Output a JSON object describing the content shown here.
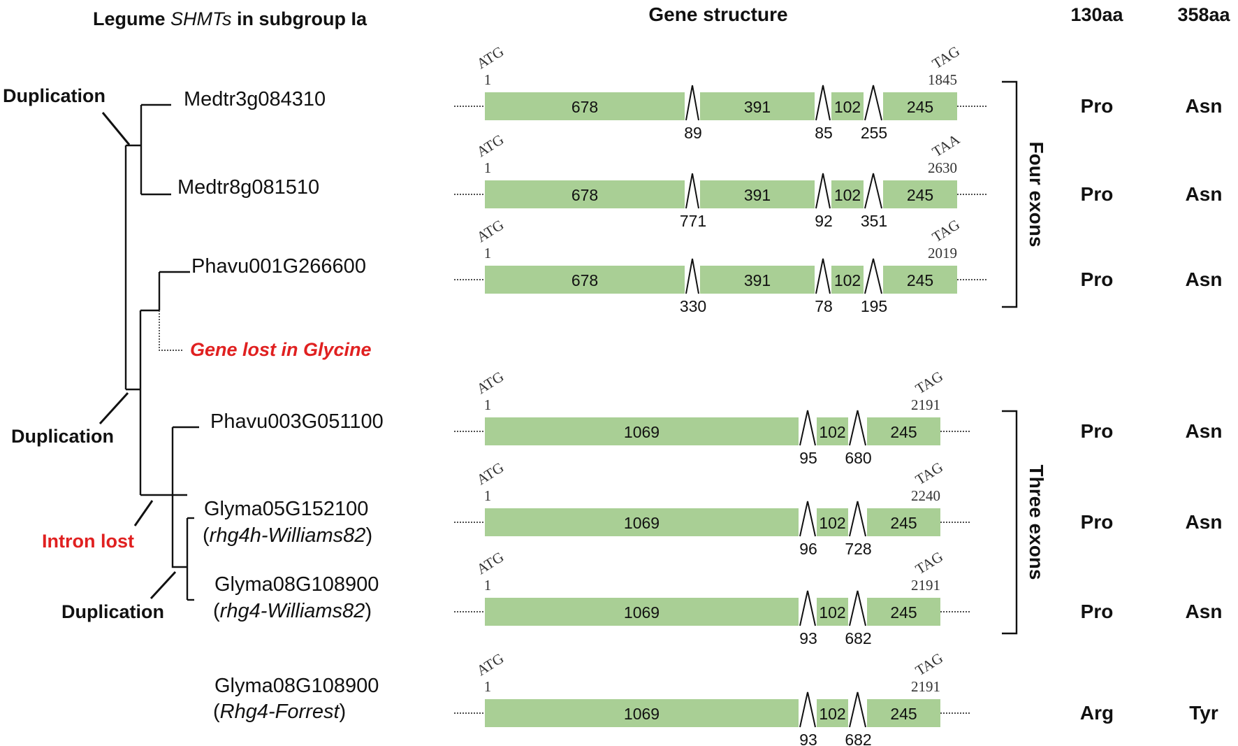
{
  "headers": {
    "title_prefix": "Legume ",
    "title_italic": "SHMTs",
    "title_suffix": " in subgroup Ia",
    "gene_structure": "Gene structure",
    "col130": "130aa",
    "col358": "358aa"
  },
  "tree_labels": {
    "duplication_top": "Duplication",
    "duplication_mid": "Duplication",
    "duplication_bottom": "Duplication",
    "intron_lost": "Intron lost",
    "gene_lost": "Gene lost in Glycine"
  },
  "groups": {
    "four_exons": "Four exons",
    "three_exons": "Three exons"
  },
  "rows": [
    {
      "gene": "Medtr3g084310",
      "sub": "",
      "start_codon": "ATG",
      "start_pos": "1",
      "stop_codon": "TAG",
      "end_pos": "1845",
      "exons": [
        "678",
        "391",
        "102",
        "245"
      ],
      "introns": [
        "89",
        "85",
        "255"
      ],
      "aa130": "Pro",
      "aa358": "Asn"
    },
    {
      "gene": "Medtr8g081510",
      "sub": "",
      "start_codon": "ATG",
      "start_pos": "1",
      "stop_codon": "TAA",
      "end_pos": "2630",
      "exons": [
        "678",
        "391",
        "102",
        "245"
      ],
      "introns": [
        "771",
        "92",
        "351"
      ],
      "aa130": "Pro",
      "aa358": "Asn"
    },
    {
      "gene": "Phavu001G266600",
      "sub": "",
      "start_codon": "ATG",
      "start_pos": "1",
      "stop_codon": "TAG",
      "end_pos": "2019",
      "exons": [
        "678",
        "391",
        "102",
        "245"
      ],
      "introns": [
        "330",
        "78",
        "195"
      ],
      "aa130": "Pro",
      "aa358": "Asn"
    },
    {
      "gene": "Phavu003G051100",
      "sub": "",
      "start_codon": "ATG",
      "start_pos": "1",
      "stop_codon": "TAG",
      "end_pos": "2191",
      "exons": [
        "1069",
        "102",
        "245"
      ],
      "introns": [
        "95",
        "680"
      ],
      "aa130": "Pro",
      "aa358": "Asn"
    },
    {
      "gene": "Glyma05G152100",
      "sub": "rhg4h-Williams82",
      "start_codon": "ATG",
      "start_pos": "1",
      "stop_codon": "TAG",
      "end_pos": "2240",
      "exons": [
        "1069",
        "102",
        "245"
      ],
      "introns": [
        "96",
        "728"
      ],
      "aa130": "Pro",
      "aa358": "Asn"
    },
    {
      "gene": "Glyma08G108900",
      "sub": "rhg4-Williams82",
      "start_codon": "ATG",
      "start_pos": "1",
      "stop_codon": "TAG",
      "end_pos": "2191",
      "exons": [
        "1069",
        "102",
        "245"
      ],
      "introns": [
        "93",
        "682"
      ],
      "aa130": "Pro",
      "aa358": "Asn"
    },
    {
      "gene": "Glyma08G108900",
      "sub": "Rhg4-Forrest",
      "start_codon": "ATG",
      "start_pos": "1",
      "stop_codon": "TAG",
      "end_pos": "2191",
      "exons": [
        "1069",
        "102",
        "245"
      ],
      "introns": [
        "93",
        "682"
      ],
      "aa130": "Arg",
      "aa358": "Tyr"
    }
  ],
  "colors": {
    "exon": "#a9cf95",
    "highlight_red": "#e02020",
    "line": "#111111"
  }
}
